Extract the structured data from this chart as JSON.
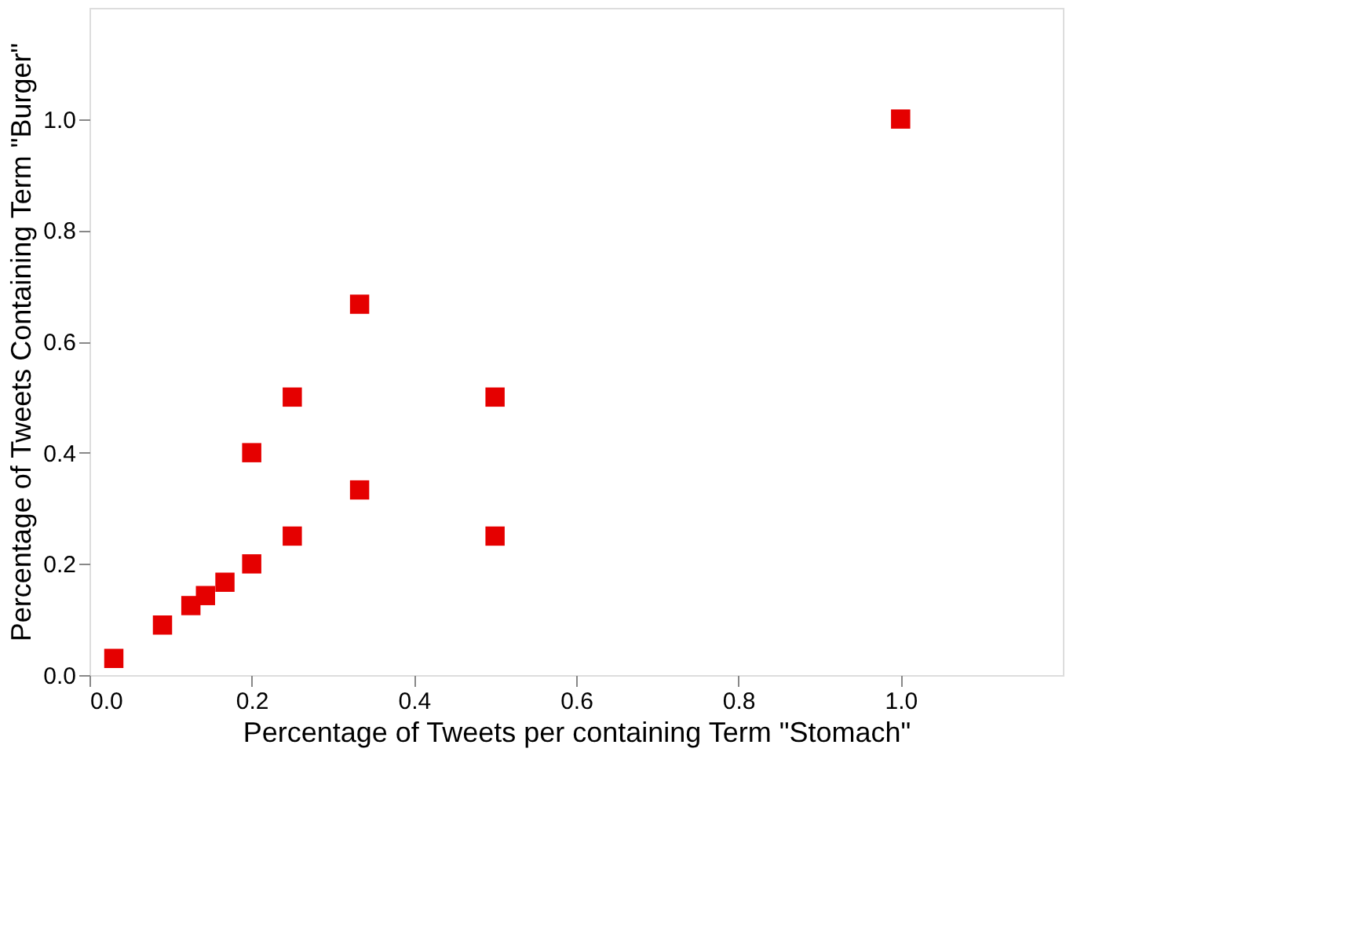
{
  "chart_data": {
    "type": "scatter",
    "xlabel": "Percentage of Tweets per containing Term \"Stomach\"",
    "ylabel": "Percentage of Tweets Containing Term \"Burger\"",
    "x": [
      0.03,
      0.09,
      0.125,
      0.143,
      0.167,
      0.2,
      0.25,
      0.2,
      0.25,
      0.333,
      0.333,
      0.5,
      0.5,
      1.0
    ],
    "series": [
      {
        "color": "#e50000",
        "values": [
          0.03,
          0.09,
          0.125,
          0.143,
          0.167,
          0.2,
          0.25,
          0.4,
          0.5,
          0.333,
          0.667,
          0.5,
          0.25,
          1.0
        ]
      }
    ],
    "xlim": [
      0,
      1.2
    ],
    "ylim": [
      0,
      1.2
    ],
    "xticks": [
      {
        "value": 0,
        "label": "0.0"
      },
      0.2,
      0.4,
      0.6,
      0.8,
      {
        "value": 1,
        "label": "1.0"
      }
    ],
    "yticks": [
      {
        "value": 0,
        "label": "0.0"
      },
      0.2,
      0.4,
      0.6,
      0.8,
      {
        "value": 1,
        "label": "1.0"
      }
    ],
    "grid": false,
    "marker": "square"
  }
}
